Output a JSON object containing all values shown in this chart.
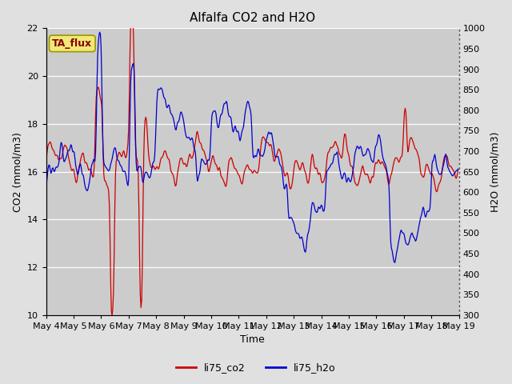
{
  "title": "Alfalfa CO2 and H2O",
  "xlabel": "Time",
  "ylabel_left": "CO2 (mmol/m3)",
  "ylabel_right": "H2O (mmol/m3)",
  "annotation": "TA_flux",
  "legend": [
    "li75_co2",
    "li75_h2o"
  ],
  "co2_color": "#cc0000",
  "h2o_color": "#0000cc",
  "ylim_left": [
    10,
    22
  ],
  "ylim_right": [
    300,
    1000
  ],
  "yticks_left": [
    10,
    12,
    14,
    16,
    18,
    20,
    22
  ],
  "yticks_right": [
    300,
    350,
    400,
    450,
    500,
    550,
    600,
    650,
    700,
    750,
    800,
    850,
    900,
    950,
    1000
  ],
  "bg_color": "#e0e0e0",
  "plot_bg_dark": "#cccccc",
  "plot_bg_light": "#d8d8d8",
  "n_points": 600,
  "seed": 42
}
